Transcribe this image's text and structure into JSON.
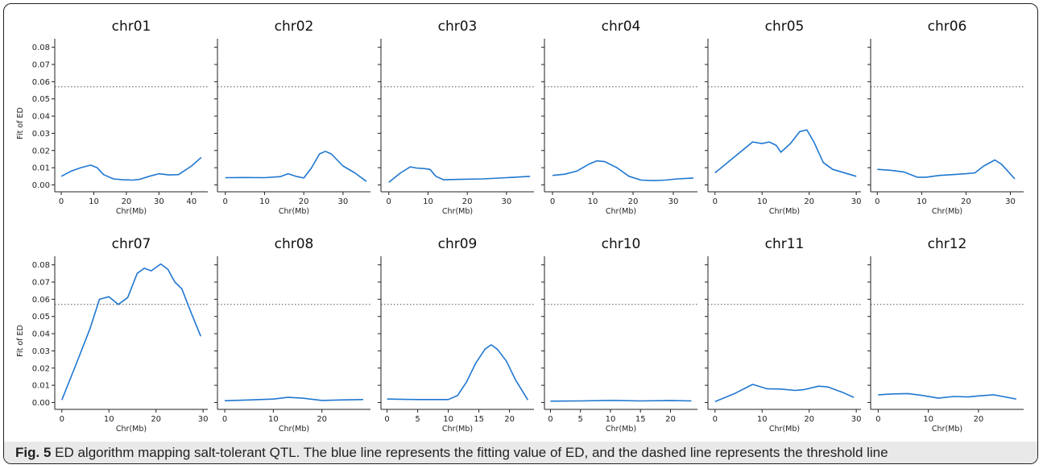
{
  "figure": {
    "caption_label": "Fig. 5",
    "caption_text": "ED algorithm mapping salt-tolerant QTL. The blue line represents the fitting value of ED, and the dashed line represents the threshold line"
  },
  "colors": {
    "line": "#1f77d0",
    "threshold": "#555555",
    "axis": "#222222"
  },
  "chart_data": [
    {
      "type": "line",
      "title": "chr01",
      "xlabel": "Chr(Mb)",
      "ylabel": "Fit of ED",
      "xlim": [
        -2,
        45
      ],
      "ylim": [
        -0.004,
        0.085
      ],
      "xticks": [
        0,
        10,
        20,
        30,
        40
      ],
      "yticks": [
        0.0,
        0.01,
        0.02,
        0.03,
        0.04,
        0.05,
        0.06,
        0.07,
        0.08
      ],
      "threshold": 0.057,
      "x": [
        0,
        3,
        6,
        9,
        11,
        13,
        16,
        19,
        22,
        24,
        27,
        30,
        33,
        36,
        40,
        43
      ],
      "y": [
        0.005,
        0.008,
        0.01,
        0.0115,
        0.01,
        0.006,
        0.0035,
        0.003,
        0.0028,
        0.0032,
        0.005,
        0.0065,
        0.0058,
        0.006,
        0.011,
        0.016
      ]
    },
    {
      "type": "line",
      "title": "chr02",
      "xlabel": "Chr(Mb)",
      "ylabel": "",
      "xlim": [
        -2,
        37
      ],
      "ylim": [
        -0.004,
        0.085
      ],
      "xticks": [
        0,
        10,
        20,
        30
      ],
      "yticks": [
        0.0,
        0.01,
        0.02,
        0.03,
        0.04,
        0.05,
        0.06,
        0.07,
        0.08
      ],
      "threshold": 0.057,
      "x": [
        0,
        5,
        10,
        14,
        16,
        18,
        20,
        22,
        24,
        25.5,
        27,
        30,
        33,
        36
      ],
      "y": [
        0.0042,
        0.0043,
        0.0042,
        0.0048,
        0.0065,
        0.005,
        0.004,
        0.01,
        0.018,
        0.0195,
        0.018,
        0.011,
        0.007,
        0.002
      ]
    },
    {
      "type": "line",
      "title": "chr03",
      "xlabel": "Chr(Mb)",
      "ylabel": "",
      "xlim": [
        -2,
        37
      ],
      "ylim": [
        -0.004,
        0.085
      ],
      "xticks": [
        0,
        10,
        20,
        30
      ],
      "yticks": [
        0.0,
        0.01,
        0.02,
        0.03,
        0.04,
        0.05,
        0.06,
        0.07,
        0.08
      ],
      "threshold": 0.057,
      "x": [
        0,
        3,
        5.5,
        7,
        9,
        10.5,
        12,
        14,
        18,
        24,
        30,
        36
      ],
      "y": [
        0.0015,
        0.007,
        0.0105,
        0.0098,
        0.0095,
        0.009,
        0.005,
        0.003,
        0.0032,
        0.0035,
        0.0042,
        0.005
      ]
    },
    {
      "type": "line",
      "title": "chr04",
      "xlabel": "Chr(Mb)",
      "ylabel": "",
      "xlim": [
        -2,
        36
      ],
      "ylim": [
        -0.004,
        0.085
      ],
      "xticks": [
        0,
        10,
        20,
        30
      ],
      "yticks": [
        0.0,
        0.01,
        0.02,
        0.03,
        0.04,
        0.05,
        0.06,
        0.07,
        0.08
      ],
      "threshold": 0.057,
      "x": [
        0,
        3,
        6,
        9,
        11,
        13,
        16,
        19,
        22,
        25,
        28,
        31,
        35
      ],
      "y": [
        0.0055,
        0.0062,
        0.008,
        0.012,
        0.014,
        0.0135,
        0.01,
        0.005,
        0.0028,
        0.0025,
        0.0028,
        0.0035,
        0.004
      ]
    },
    {
      "type": "line",
      "title": "chr05",
      "xlabel": "Chr(Mb)",
      "ylabel": "",
      "xlim": [
        -1.5,
        31
      ],
      "ylim": [
        -0.004,
        0.085
      ],
      "xticks": [
        0,
        10,
        20,
        30
      ],
      "yticks": [
        0.0,
        0.01,
        0.02,
        0.03,
        0.04,
        0.05,
        0.06,
        0.07,
        0.08
      ],
      "threshold": 0.057,
      "x": [
        0,
        4,
        8,
        10,
        11.5,
        13,
        14,
        16,
        18,
        19.5,
        21,
        23,
        25,
        30
      ],
      "y": [
        0.007,
        0.016,
        0.025,
        0.024,
        0.025,
        0.023,
        0.019,
        0.024,
        0.031,
        0.032,
        0.025,
        0.013,
        0.009,
        0.005
      ]
    },
    {
      "type": "line",
      "title": "chr06",
      "xlabel": "Chr(Mb)",
      "ylabel": "",
      "xlim": [
        -1.5,
        33
      ],
      "ylim": [
        -0.004,
        0.085
      ],
      "xticks": [
        0,
        10,
        20,
        30
      ],
      "yticks": [
        0.0,
        0.01,
        0.02,
        0.03,
        0.04,
        0.05,
        0.06,
        0.07,
        0.08
      ],
      "threshold": 0.057,
      "x": [
        0,
        3,
        6,
        9,
        11,
        14,
        17,
        20,
        22,
        24,
        26.5,
        28,
        31
      ],
      "y": [
        0.009,
        0.0085,
        0.0075,
        0.0045,
        0.0045,
        0.0055,
        0.006,
        0.0065,
        0.007,
        0.011,
        0.0145,
        0.012,
        0.0035
      ]
    },
    {
      "type": "line",
      "title": "chr07",
      "xlabel": "Chr(Mb)",
      "ylabel": "Fit of ED",
      "xlim": [
        -1.5,
        31
      ],
      "ylim": [
        -0.004,
        0.085
      ],
      "xticks": [
        0,
        10,
        20,
        30
      ],
      "yticks": [
        0.0,
        0.01,
        0.02,
        0.03,
        0.04,
        0.05,
        0.06,
        0.07,
        0.08
      ],
      "threshold": 0.057,
      "x": [
        0,
        3,
        6,
        8,
        10,
        12,
        14,
        16,
        17.5,
        19,
        21,
        22.5,
        24,
        25.5,
        27.5,
        29.5
      ],
      "y": [
        0.0015,
        0.022,
        0.043,
        0.06,
        0.0615,
        0.057,
        0.061,
        0.075,
        0.078,
        0.0765,
        0.0805,
        0.0775,
        0.07,
        0.066,
        0.052,
        0.0385
      ]
    },
    {
      "type": "line",
      "title": "chr08",
      "xlabel": "Chr(Mb)",
      "ylabel": "",
      "xlim": [
        -1.5,
        30
      ],
      "ylim": [
        -0.004,
        0.085
      ],
      "xticks": [
        0,
        10,
        20
      ],
      "yticks": [
        0.0,
        0.01,
        0.02,
        0.03,
        0.04,
        0.05,
        0.06,
        0.07,
        0.08
      ],
      "threshold": 0.057,
      "x": [
        0,
        5,
        10,
        13,
        16,
        20,
        24,
        28.5
      ],
      "y": [
        0.001,
        0.0015,
        0.002,
        0.003,
        0.0025,
        0.0012,
        0.0015,
        0.0017
      ]
    },
    {
      "type": "line",
      "title": "chr09",
      "xlabel": "Chr(Mb)",
      "ylabel": "",
      "xlim": [
        -1,
        24
      ],
      "ylim": [
        -0.004,
        0.085
      ],
      "xticks": [
        0,
        5,
        10,
        15,
        20
      ],
      "yticks": [
        0.0,
        0.01,
        0.02,
        0.03,
        0.04,
        0.05,
        0.06,
        0.07,
        0.08
      ],
      "threshold": 0.057,
      "x": [
        0,
        5,
        10,
        11.5,
        13,
        14.5,
        16,
        17,
        18,
        19.5,
        21,
        23
      ],
      "y": [
        0.002,
        0.0017,
        0.0017,
        0.004,
        0.012,
        0.023,
        0.031,
        0.0335,
        0.031,
        0.024,
        0.013,
        0.0015
      ]
    },
    {
      "type": "line",
      "title": "chr10",
      "xlabel": "Chr(Mb)",
      "ylabel": "",
      "xlim": [
        -1,
        24.5
      ],
      "ylim": [
        -0.004,
        0.085
      ],
      "xticks": [
        0,
        5,
        10,
        15,
        20
      ],
      "yticks": [
        0.0,
        0.01,
        0.02,
        0.03,
        0.04,
        0.05,
        0.06,
        0.07,
        0.08
      ],
      "threshold": 0.057,
      "x": [
        0,
        5,
        10,
        15,
        20,
        23.5
      ],
      "y": [
        0.0008,
        0.0009,
        0.0012,
        0.0009,
        0.0011,
        0.0009
      ]
    },
    {
      "type": "line",
      "title": "chr11",
      "xlabel": "Chr(Mb)",
      "ylabel": "",
      "xlim": [
        -1.5,
        31
      ],
      "ylim": [
        -0.004,
        0.085
      ],
      "xticks": [
        0,
        10,
        20,
        30
      ],
      "yticks": [
        0.0,
        0.01,
        0.02,
        0.03,
        0.04,
        0.05,
        0.06,
        0.07,
        0.08
      ],
      "threshold": 0.057,
      "x": [
        0,
        4,
        8,
        11,
        14,
        17,
        19,
        22,
        24,
        27,
        29.5
      ],
      "y": [
        0.0005,
        0.005,
        0.0105,
        0.008,
        0.0078,
        0.007,
        0.0075,
        0.0095,
        0.009,
        0.006,
        0.003
      ]
    },
    {
      "type": "line",
      "title": "chr12",
      "xlabel": "Chr(Mb)",
      "ylabel": "",
      "xlim": [
        -1.5,
        29
      ],
      "ylim": [
        -0.004,
        0.085
      ],
      "xticks": [
        0,
        10,
        20
      ],
      "yticks": [
        0.0,
        0.01,
        0.02,
        0.03,
        0.04,
        0.05,
        0.06,
        0.07,
        0.08
      ],
      "threshold": 0.057,
      "x": [
        0,
        3,
        6,
        9,
        12,
        15,
        18,
        20,
        23,
        27.5
      ],
      "y": [
        0.0045,
        0.005,
        0.0052,
        0.004,
        0.0025,
        0.0035,
        0.0032,
        0.0038,
        0.0045,
        0.002
      ]
    }
  ]
}
